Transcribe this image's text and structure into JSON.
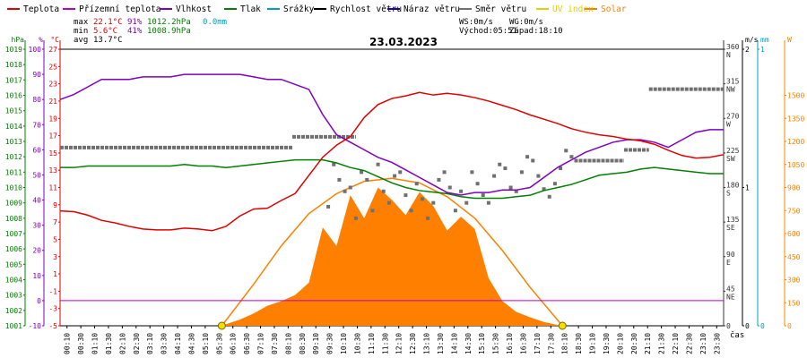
{
  "chart_data": {
    "type": "line",
    "title": "23.03.2023",
    "xlabel": "čas",
    "colors": {
      "temperature": "#e00000",
      "apparent_temperature": "#b000d0",
      "humidity": "#8000c0",
      "pressure": "#008000",
      "rainfall": "#00a0c0",
      "wind_speed": "#000000",
      "wind_gust": "#2000a0",
      "wind_dir": "#707070",
      "uv": "#e0d000",
      "solar": "#ff8000"
    },
    "legend": [
      {
        "key": "temperature",
        "label": "Teplota"
      },
      {
        "key": "apparent_temperature",
        "label": "Přízemní teplota"
      },
      {
        "key": "humidity",
        "label": "Vlhkost"
      },
      {
        "key": "pressure",
        "label": "Tlak"
      },
      {
        "key": "rainfall",
        "label": "Srážky"
      },
      {
        "key": "wind_speed",
        "label": "Rychlost větru"
      },
      {
        "key": "wind_gust",
        "label": "Náraz větru"
      },
      {
        "key": "wind_dir",
        "label": "Směr větru"
      },
      {
        "key": "uv",
        "label": "UV index"
      },
      {
        "key": "solar",
        "label": "Solar"
      }
    ],
    "stats": {
      "max": {
        "label": "max",
        "temp": "22.1°C",
        "hum": "91%",
        "press": "1012.2hPa",
        "rain": "0.0mm"
      },
      "min": {
        "label": "min",
        "temp": "5.6°C",
        "hum": "41%",
        "press": "1008.9hPa"
      },
      "avg": {
        "label": "avg",
        "temp": "13.7°C"
      },
      "wind": {
        "ws": "WS:0m/s",
        "wg": "WG:0m/s"
      },
      "sun": {
        "sunrise": "Východ:05:51",
        "sunset": "Západ:18:10"
      }
    },
    "axis_units": {
      "hpa": "hPa",
      "pct": "%",
      "degc": "°C",
      "ms": "m/s",
      "mm": "mm",
      "w": "W"
    },
    "x_ticks": [
      "00:10",
      "00:30",
      "01:10",
      "01:30",
      "02:10",
      "02:30",
      "03:10",
      "03:30",
      "04:10",
      "04:30",
      "05:10",
      "05:30",
      "06:10",
      "06:30",
      "07:10",
      "07:30",
      "08:10",
      "08:30",
      "09:10",
      "09:30",
      "10:10",
      "10:30",
      "11:10",
      "11:30",
      "12:10",
      "12:30",
      "13:10",
      "13:30",
      "14:10",
      "14:30",
      "15:10",
      "15:30",
      "16:10",
      "16:30",
      "17:10",
      "17:30",
      "18:10",
      "18:30",
      "19:10",
      "19:30",
      "20:10",
      "20:30",
      "21:10",
      "21:30",
      "22:10",
      "22:30",
      "23:10",
      "23:30"
    ],
    "x_range_hours": [
      0,
      24
    ],
    "axes": {
      "hpa": {
        "range": [
          1001,
          1019
        ],
        "ticks": [
          1001,
          1002,
          1003,
          1004,
          1005,
          1006,
          1007,
          1008,
          1009,
          1010,
          1011,
          1012,
          1013,
          1014,
          1015,
          1016,
          1017,
          1018,
          1019
        ]
      },
      "pct": {
        "range": [
          -10,
          100
        ],
        "ticks": [
          -10,
          0,
          10,
          20,
          30,
          40,
          50,
          60,
          70,
          80,
          90,
          100
        ],
        "labels": [
          "-10",
          "0",
          "10",
          "20",
          "30",
          "40",
          "50",
          "60",
          "70",
          "80",
          "90",
          "100"
        ]
      },
      "degc": {
        "range": [
          -5,
          27
        ],
        "ticks": [
          -5,
          -3,
          -1,
          1,
          3,
          5,
          7,
          9,
          11,
          13,
          15,
          17,
          19,
          21,
          23,
          25,
          27
        ]
      },
      "dir": {
        "range": [
          0,
          360
        ],
        "ticks": [
          0,
          45,
          90,
          135,
          180,
          225,
          270,
          315,
          360
        ],
        "labels": [
          "0",
          "45\nNE",
          "90\nE",
          "135\nSE",
          "180\nS",
          "225\nSW",
          "270\nW",
          "315\nNW",
          "360\nN"
        ]
      },
      "ms": {
        "range": [
          0,
          2
        ],
        "ticks": [
          0,
          1,
          2
        ]
      },
      "mm": {
        "range": [
          0,
          1
        ],
        "ticks": [
          0,
          1
        ]
      },
      "w": {
        "range": [
          0,
          1800
        ],
        "ticks": [
          0,
          150,
          300,
          450,
          600,
          750,
          900,
          1050,
          1200,
          1350,
          1500
        ]
      }
    },
    "zero_line_pct": 0,
    "series": {
      "temperature": {
        "axis": "degc",
        "x": [
          0,
          0.5,
          1,
          1.5,
          2,
          2.5,
          3,
          3.5,
          4,
          4.5,
          5,
          5.5,
          6,
          6.5,
          7,
          7.5,
          8,
          8.5,
          9,
          9.5,
          10,
          10.5,
          11,
          11.5,
          12,
          12.5,
          13,
          13.5,
          14,
          14.5,
          15,
          15.5,
          16,
          16.5,
          17,
          17.5,
          18,
          18.5,
          19,
          19.5,
          20,
          20.5,
          21,
          21.5,
          22,
          22.5,
          23,
          23.5,
          24
        ],
        "values": [
          8.3,
          8.2,
          7.8,
          7.2,
          6.9,
          6.5,
          6.2,
          6.1,
          6.1,
          6.3,
          6.2,
          6.0,
          6.5,
          7.7,
          8.5,
          8.6,
          9.5,
          10.3,
          12.4,
          14.5,
          15.9,
          16.9,
          19.1,
          20.6,
          21.3,
          21.6,
          22.0,
          21.7,
          21.9,
          21.7,
          21.4,
          21.0,
          20.5,
          20.0,
          19.4,
          18.9,
          18.4,
          17.8,
          17.4,
          17.1,
          16.9,
          16.6,
          16.4,
          16.0,
          15.3,
          14.7,
          14.4,
          14.5,
          14.8
        ]
      },
      "apparent_temperature": {
        "axis": "degc",
        "x": [
          0,
          0.5,
          1,
          1.5,
          2,
          2.5,
          3,
          3.5,
          4,
          4.5,
          5,
          5.5,
          6,
          6.5,
          7,
          7.5,
          8,
          8.5,
          9,
          9.5,
          10,
          10.5,
          11,
          11.5,
          12,
          12.5,
          13,
          13.5,
          14,
          14.5,
          15,
          15.5,
          16,
          16.5,
          17,
          17.5,
          18,
          18.5,
          19,
          19.5,
          20,
          20.5,
          21,
          21.5,
          22,
          22.5,
          23,
          23.5,
          24
        ],
        "values": [
          8.3,
          8.2,
          7.8,
          7.2,
          6.9,
          6.5,
          6.2,
          6.1,
          6.1,
          6.3,
          6.2,
          6.0,
          6.5,
          7.7,
          8.5,
          8.6,
          9.5,
          10.3,
          12.4,
          14.5,
          15.9,
          16.9,
          19.1,
          20.6,
          21.3,
          21.6,
          22.0,
          21.7,
          21.9,
          21.7,
          21.4,
          21.0,
          20.5,
          20.0,
          19.4,
          18.9,
          18.4,
          17.8,
          17.4,
          17.1,
          16.9,
          16.6,
          16.4,
          16.0,
          15.3,
          14.7,
          14.4,
          14.5,
          14.8
        ]
      },
      "humidity": {
        "axis": "pct",
        "x": [
          0,
          0.5,
          1,
          1.5,
          2,
          2.5,
          3,
          3.5,
          4,
          4.5,
          5,
          5.5,
          6,
          6.5,
          7,
          7.5,
          8,
          8.5,
          9,
          9.5,
          10,
          10.5,
          11,
          11.5,
          12,
          12.5,
          13,
          13.5,
          14,
          14.5,
          15,
          15.5,
          16,
          16.5,
          17,
          17.5,
          18,
          18.5,
          19,
          19.5,
          20,
          20.5,
          21,
          21.5,
          22,
          22.5,
          23,
          23.5,
          24
        ],
        "values": [
          80,
          82,
          85,
          88,
          88,
          88,
          89,
          89,
          89,
          90,
          90,
          90,
          90,
          90,
          89,
          88,
          88,
          86,
          84,
          74,
          66,
          63,
          60,
          57,
          55,
          52,
          49,
          46,
          43,
          42,
          43,
          43,
          44,
          44,
          45,
          49,
          53,
          56,
          59,
          61,
          63,
          64,
          64,
          63,
          61,
          64,
          67,
          68,
          68
        ]
      },
      "pressure": {
        "axis": "hpa",
        "x": [
          0,
          0.5,
          1,
          1.5,
          2,
          2.5,
          3,
          3.5,
          4,
          4.5,
          5,
          5.5,
          6,
          6.5,
          7,
          7.5,
          8,
          8.5,
          9,
          9.5,
          10,
          10.5,
          11,
          11.5,
          12,
          12.5,
          13,
          13.5,
          14,
          14.5,
          15,
          15.5,
          16,
          16.5,
          17,
          17.5,
          18,
          18.5,
          19,
          19.5,
          20,
          20.5,
          21,
          21.5,
          22,
          22.5,
          23,
          23.5,
          24
        ],
        "values": [
          1011.3,
          1011.3,
          1011.4,
          1011.4,
          1011.4,
          1011.4,
          1011.4,
          1011.4,
          1011.4,
          1011.5,
          1011.4,
          1011.4,
          1011.3,
          1011.4,
          1011.5,
          1011.6,
          1011.7,
          1011.8,
          1011.8,
          1011.8,
          1011.6,
          1011.3,
          1011.1,
          1010.7,
          1010.3,
          1010.0,
          1009.8,
          1009.7,
          1009.6,
          1009.4,
          1009.3,
          1009.3,
          1009.3,
          1009.4,
          1009.5,
          1009.8,
          1010.0,
          1010.2,
          1010.5,
          1010.8,
          1010.9,
          1011.0,
          1011.2,
          1011.3,
          1011.2,
          1011.1,
          1011.0,
          1010.9,
          1010.9
        ]
      },
      "wind_dir": {
        "axis": "dir",
        "segments": [
          {
            "from": 0,
            "to": 8.4,
            "value": 232
          },
          {
            "from": 8.4,
            "to": 10.7,
            "value": 246
          },
          {
            "from": 18.6,
            "to": 20.4,
            "value": 215
          },
          {
            "from": 20.4,
            "to": 21.3,
            "value": 229
          },
          {
            "from": 21.3,
            "to": 24,
            "value": 308
          }
        ],
        "scatter": [
          [
            9.7,
            155
          ],
          [
            9.9,
            210
          ],
          [
            10.1,
            190
          ],
          [
            10.3,
            175
          ],
          [
            10.5,
            180
          ],
          [
            10.7,
            140
          ],
          [
            10.9,
            200
          ],
          [
            11.1,
            190
          ],
          [
            11.3,
            150
          ],
          [
            11.5,
            210
          ],
          [
            11.7,
            175
          ],
          [
            11.9,
            160
          ],
          [
            12.1,
            195
          ],
          [
            12.3,
            200
          ],
          [
            12.5,
            170
          ],
          [
            12.7,
            150
          ],
          [
            12.9,
            185
          ],
          [
            13.1,
            165
          ],
          [
            13.3,
            140
          ],
          [
            13.5,
            160
          ],
          [
            13.7,
            190
          ],
          [
            13.9,
            200
          ],
          [
            14.1,
            180
          ],
          [
            14.3,
            150
          ],
          [
            14.5,
            175
          ],
          [
            14.7,
            160
          ],
          [
            14.9,
            200
          ],
          [
            15.1,
            185
          ],
          [
            15.3,
            170
          ],
          [
            15.5,
            160
          ],
          [
            15.7,
            195
          ],
          [
            15.9,
            210
          ],
          [
            16.1,
            205
          ],
          [
            16.3,
            180
          ],
          [
            16.5,
            175
          ],
          [
            16.7,
            200
          ],
          [
            16.9,
            220
          ],
          [
            17.1,
            215
          ],
          [
            17.3,
            195
          ],
          [
            17.5,
            178
          ],
          [
            17.7,
            168
          ],
          [
            17.9,
            185
          ],
          [
            18.1,
            205
          ],
          [
            18.3,
            228
          ],
          [
            18.5,
            220
          ]
        ]
      },
      "solar": {
        "axis": "w",
        "x": [
          5.85,
          6.0,
          6.5,
          7.0,
          7.5,
          8.0,
          8.5,
          9.0,
          9.5,
          10.0,
          10.5,
          11.0,
          11.5,
          12.0,
          12.5,
          13.0,
          13.5,
          14.0,
          14.5,
          15.0,
          15.5,
          16.0,
          16.5,
          17.0,
          17.5,
          18.0,
          18.17
        ],
        "values": [
          0,
          10,
          40,
          80,
          130,
          160,
          200,
          280,
          640,
          520,
          850,
          700,
          900,
          820,
          720,
          870,
          780,
          620,
          710,
          630,
          310,
          160,
          90,
          55,
          25,
          5,
          0
        ]
      },
      "solar_theoretical": {
        "axis": "w",
        "x": [
          5.85,
          7.0,
          8.0,
          9.0,
          10.0,
          11.0,
          12.0,
          13.0,
          14.0,
          15.0,
          16.0,
          17.0,
          18.17
        ],
        "values": [
          0,
          270,
          520,
          730,
          860,
          940,
          960,
          930,
          840,
          700,
          490,
          250,
          0
        ]
      }
    },
    "sun_markers_hours": [
      5.85,
      18.17
    ],
    "uv_markers_value": 0
  }
}
